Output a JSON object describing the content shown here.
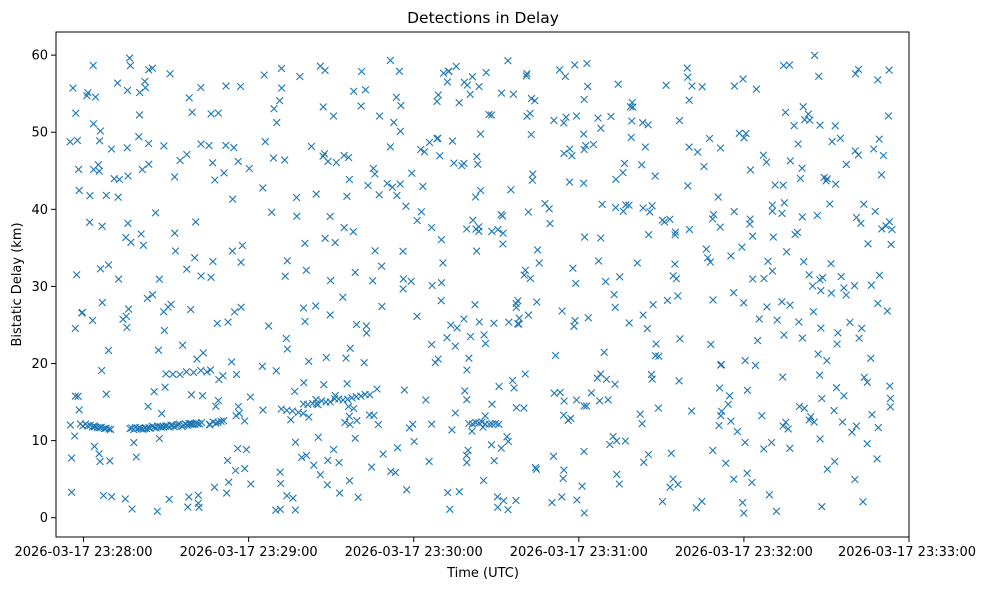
{
  "chart_data": {
    "type": "scatter",
    "title": "Detections in Delay",
    "xlabel": "Time (UTC)",
    "ylabel": "Bistatic Delay (km)",
    "marker": "x",
    "color": "#1f77b4",
    "grid": false,
    "legend": "none",
    "xlim": [
      "2026-03-17 23:27:50",
      "2026-03-17 23:33:00"
    ],
    "ylim": [
      -2.5,
      63
    ],
    "x_ticks": [
      "2026-03-17 23:28:00",
      "2026-03-17 23:29:00",
      "2026-03-17 23:30:00",
      "2026-03-17 23:31:00",
      "2026-03-17 23:32:00",
      "2026-03-17 23:33:00"
    ],
    "y_ticks": [
      0,
      10,
      20,
      30,
      40,
      50,
      60
    ],
    "tracks": [
      {
        "start": "2026-03-17 23:27:59",
        "end": "2026-03-17 23:28:10",
        "delay_start": 12.1,
        "delay_end": 11.6,
        "count": 14
      },
      {
        "start": "2026-03-17 23:28:17",
        "end": "2026-03-17 23:28:43",
        "delay_start": 11.5,
        "delay_end": 12.2,
        "count": 40
      },
      {
        "start": "2026-03-17 23:28:46",
        "end": "2026-03-17 23:28:51",
        "delay_start": 12.3,
        "delay_end": 12.6,
        "count": 6
      },
      {
        "start": "2026-03-17 23:28:30",
        "end": "2026-03-17 23:28:45",
        "delay_start": 18.6,
        "delay_end": 19.0,
        "count": 7
      },
      {
        "start": "2026-03-17 23:29:12",
        "end": "2026-03-17 23:29:22",
        "delay_start": 14.0,
        "delay_end": 13.2,
        "count": 6
      },
      {
        "start": "2026-03-17 23:29:20",
        "end": "2026-03-17 23:29:44",
        "delay_start": 14.6,
        "delay_end": 16.0,
        "count": 16
      },
      {
        "start": "2026-03-17 23:30:20",
        "end": "2026-03-17 23:30:31",
        "delay_start": 12.3,
        "delay_end": 12.2,
        "count": 10
      }
    ],
    "scattered_detections": {
      "start": "2026-03-17 23:27:55",
      "end": "2026-03-17 23:32:54",
      "count": 760,
      "delay_min": 0.5,
      "delay_max": 60
    }
  }
}
